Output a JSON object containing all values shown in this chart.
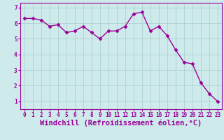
{
  "x": [
    0,
    1,
    2,
    3,
    4,
    5,
    6,
    7,
    8,
    9,
    10,
    11,
    12,
    13,
    14,
    15,
    16,
    17,
    18,
    19,
    20,
    21,
    22,
    23
  ],
  "y": [
    6.3,
    6.3,
    6.2,
    5.8,
    5.9,
    5.4,
    5.5,
    5.8,
    5.4,
    5.0,
    5.5,
    5.5,
    5.8,
    6.6,
    6.7,
    5.5,
    5.8,
    5.2,
    4.3,
    3.5,
    3.4,
    2.2,
    1.5,
    1.0
  ],
  "line_color": "#990099",
  "marker": "D",
  "marker_size": 2.5,
  "bg_color": "#ceeaea",
  "grid_color": "#aacccc",
  "xlabel": "Windchill (Refroidissement éolien,°C)",
  "xlim": [
    -0.5,
    23.5
  ],
  "ylim": [
    0.5,
    7.3
  ],
  "yticks": [
    1,
    2,
    3,
    4,
    5,
    6,
    7
  ],
  "xticks": [
    0,
    1,
    2,
    3,
    4,
    5,
    6,
    7,
    8,
    9,
    10,
    11,
    12,
    13,
    14,
    15,
    16,
    17,
    18,
    19,
    20,
    21,
    22,
    23
  ],
  "xlabel_fontsize": 7.5,
  "tick_fontsize": 5.5,
  "line_width": 1.0,
  "xlabel_color": "#990099",
  "tick_color": "#990099"
}
